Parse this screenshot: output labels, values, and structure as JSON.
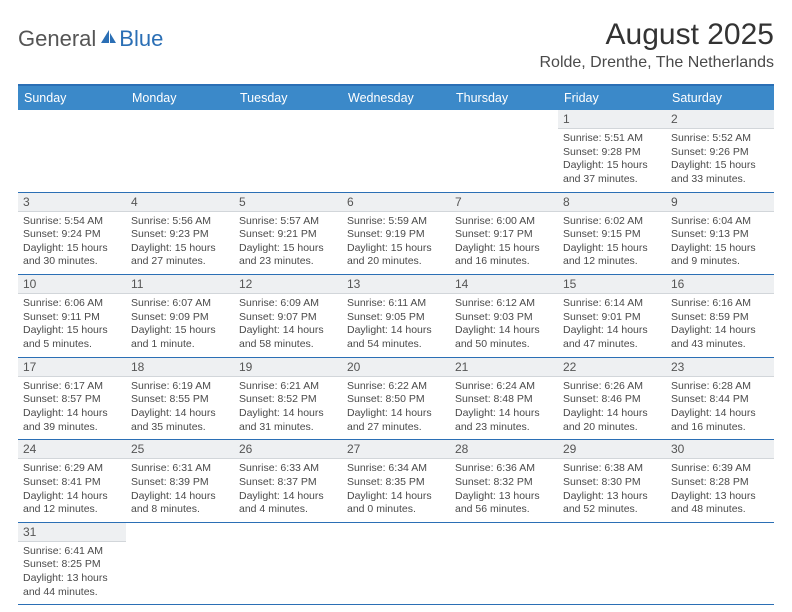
{
  "logo": {
    "text1": "General",
    "text2": "Blue"
  },
  "title": "August 2025",
  "location": "Rolde, Drenthe, The Netherlands",
  "daynames": [
    "Sunday",
    "Monday",
    "Tuesday",
    "Wednesday",
    "Thursday",
    "Friday",
    "Saturday"
  ],
  "colors": {
    "header_bar": "#3b89c9",
    "accent_border": "#2b6fb5",
    "daynum_bg": "#eef0f2",
    "text": "#4a4a4a"
  },
  "weeks": [
    [
      null,
      null,
      null,
      null,
      null,
      {
        "n": "1",
        "sr": "Sunrise: 5:51 AM",
        "ss": "Sunset: 9:28 PM",
        "dl": "Daylight: 15 hours and 37 minutes."
      },
      {
        "n": "2",
        "sr": "Sunrise: 5:52 AM",
        "ss": "Sunset: 9:26 PM",
        "dl": "Daylight: 15 hours and 33 minutes."
      }
    ],
    [
      {
        "n": "3",
        "sr": "Sunrise: 5:54 AM",
        "ss": "Sunset: 9:24 PM",
        "dl": "Daylight: 15 hours and 30 minutes."
      },
      {
        "n": "4",
        "sr": "Sunrise: 5:56 AM",
        "ss": "Sunset: 9:23 PM",
        "dl": "Daylight: 15 hours and 27 minutes."
      },
      {
        "n": "5",
        "sr": "Sunrise: 5:57 AM",
        "ss": "Sunset: 9:21 PM",
        "dl": "Daylight: 15 hours and 23 minutes."
      },
      {
        "n": "6",
        "sr": "Sunrise: 5:59 AM",
        "ss": "Sunset: 9:19 PM",
        "dl": "Daylight: 15 hours and 20 minutes."
      },
      {
        "n": "7",
        "sr": "Sunrise: 6:00 AM",
        "ss": "Sunset: 9:17 PM",
        "dl": "Daylight: 15 hours and 16 minutes."
      },
      {
        "n": "8",
        "sr": "Sunrise: 6:02 AM",
        "ss": "Sunset: 9:15 PM",
        "dl": "Daylight: 15 hours and 12 minutes."
      },
      {
        "n": "9",
        "sr": "Sunrise: 6:04 AM",
        "ss": "Sunset: 9:13 PM",
        "dl": "Daylight: 15 hours and 9 minutes."
      }
    ],
    [
      {
        "n": "10",
        "sr": "Sunrise: 6:06 AM",
        "ss": "Sunset: 9:11 PM",
        "dl": "Daylight: 15 hours and 5 minutes."
      },
      {
        "n": "11",
        "sr": "Sunrise: 6:07 AM",
        "ss": "Sunset: 9:09 PM",
        "dl": "Daylight: 15 hours and 1 minute."
      },
      {
        "n": "12",
        "sr": "Sunrise: 6:09 AM",
        "ss": "Sunset: 9:07 PM",
        "dl": "Daylight: 14 hours and 58 minutes."
      },
      {
        "n": "13",
        "sr": "Sunrise: 6:11 AM",
        "ss": "Sunset: 9:05 PM",
        "dl": "Daylight: 14 hours and 54 minutes."
      },
      {
        "n": "14",
        "sr": "Sunrise: 6:12 AM",
        "ss": "Sunset: 9:03 PM",
        "dl": "Daylight: 14 hours and 50 minutes."
      },
      {
        "n": "15",
        "sr": "Sunrise: 6:14 AM",
        "ss": "Sunset: 9:01 PM",
        "dl": "Daylight: 14 hours and 47 minutes."
      },
      {
        "n": "16",
        "sr": "Sunrise: 6:16 AM",
        "ss": "Sunset: 8:59 PM",
        "dl": "Daylight: 14 hours and 43 minutes."
      }
    ],
    [
      {
        "n": "17",
        "sr": "Sunrise: 6:17 AM",
        "ss": "Sunset: 8:57 PM",
        "dl": "Daylight: 14 hours and 39 minutes."
      },
      {
        "n": "18",
        "sr": "Sunrise: 6:19 AM",
        "ss": "Sunset: 8:55 PM",
        "dl": "Daylight: 14 hours and 35 minutes."
      },
      {
        "n": "19",
        "sr": "Sunrise: 6:21 AM",
        "ss": "Sunset: 8:52 PM",
        "dl": "Daylight: 14 hours and 31 minutes."
      },
      {
        "n": "20",
        "sr": "Sunrise: 6:22 AM",
        "ss": "Sunset: 8:50 PM",
        "dl": "Daylight: 14 hours and 27 minutes."
      },
      {
        "n": "21",
        "sr": "Sunrise: 6:24 AM",
        "ss": "Sunset: 8:48 PM",
        "dl": "Daylight: 14 hours and 23 minutes."
      },
      {
        "n": "22",
        "sr": "Sunrise: 6:26 AM",
        "ss": "Sunset: 8:46 PM",
        "dl": "Daylight: 14 hours and 20 minutes."
      },
      {
        "n": "23",
        "sr": "Sunrise: 6:28 AM",
        "ss": "Sunset: 8:44 PM",
        "dl": "Daylight: 14 hours and 16 minutes."
      }
    ],
    [
      {
        "n": "24",
        "sr": "Sunrise: 6:29 AM",
        "ss": "Sunset: 8:41 PM",
        "dl": "Daylight: 14 hours and 12 minutes."
      },
      {
        "n": "25",
        "sr": "Sunrise: 6:31 AM",
        "ss": "Sunset: 8:39 PM",
        "dl": "Daylight: 14 hours and 8 minutes."
      },
      {
        "n": "26",
        "sr": "Sunrise: 6:33 AM",
        "ss": "Sunset: 8:37 PM",
        "dl": "Daylight: 14 hours and 4 minutes."
      },
      {
        "n": "27",
        "sr": "Sunrise: 6:34 AM",
        "ss": "Sunset: 8:35 PM",
        "dl": "Daylight: 14 hours and 0 minutes."
      },
      {
        "n": "28",
        "sr": "Sunrise: 6:36 AM",
        "ss": "Sunset: 8:32 PM",
        "dl": "Daylight: 13 hours and 56 minutes."
      },
      {
        "n": "29",
        "sr": "Sunrise: 6:38 AM",
        "ss": "Sunset: 8:30 PM",
        "dl": "Daylight: 13 hours and 52 minutes."
      },
      {
        "n": "30",
        "sr": "Sunrise: 6:39 AM",
        "ss": "Sunset: 8:28 PM",
        "dl": "Daylight: 13 hours and 48 minutes."
      }
    ],
    [
      {
        "n": "31",
        "sr": "Sunrise: 6:41 AM",
        "ss": "Sunset: 8:25 PM",
        "dl": "Daylight: 13 hours and 44 minutes."
      },
      null,
      null,
      null,
      null,
      null,
      null
    ]
  ]
}
